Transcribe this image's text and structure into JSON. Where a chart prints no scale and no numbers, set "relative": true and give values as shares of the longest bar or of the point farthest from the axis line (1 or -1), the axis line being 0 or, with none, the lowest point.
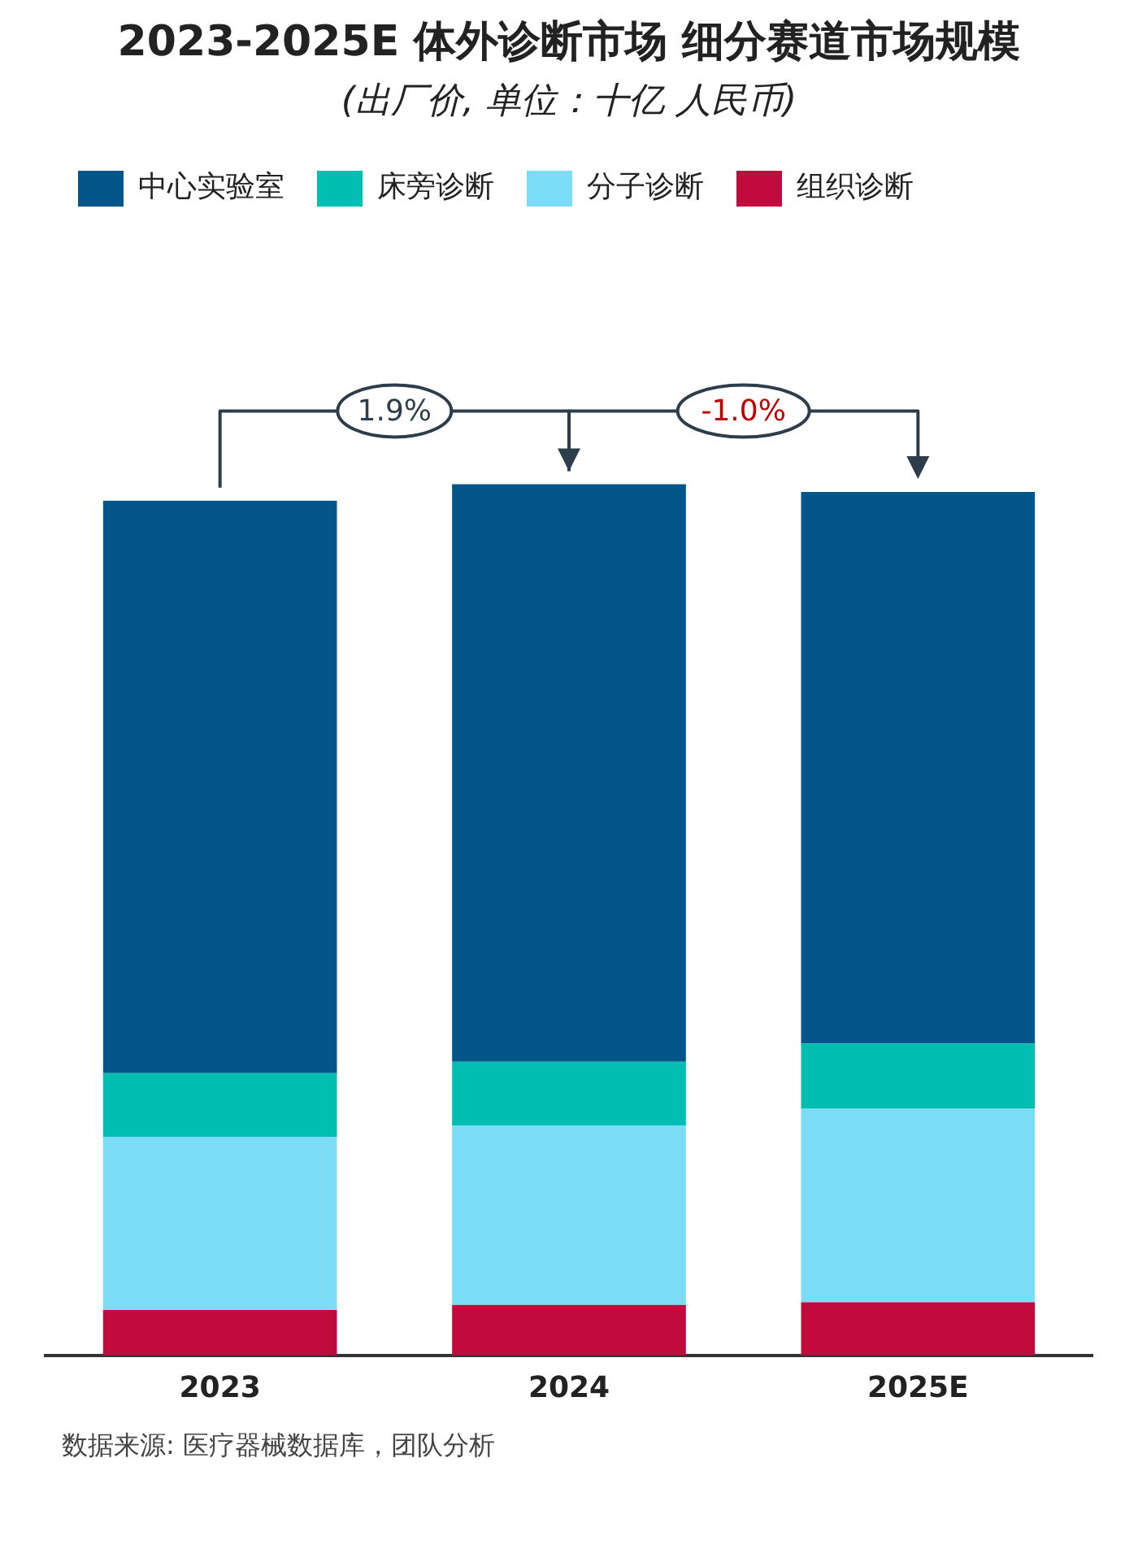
{
  "chart_data": {
    "type": "bar",
    "title": "2023-2025E 体外诊断市场 细分赛道市场规模",
    "subtitle": "(出厂价, 单位：十亿 人民币)",
    "categories": [
      "2023",
      "2024",
      "2025E"
    ],
    "stacked": true,
    "relative": true,
    "legend": "top",
    "grid": false,
    "series": [
      {
        "name": "组织诊断",
        "color": "#c10b3c",
        "values": [
          0.052,
          0.058,
          0.061
        ]
      },
      {
        "name": "分子诊断",
        "color": "#7ddcf5",
        "values": [
          0.199,
          0.206,
          0.222
        ]
      },
      {
        "name": "床旁诊断",
        "color": "#00bfb2",
        "values": [
          0.073,
          0.073,
          0.075
        ]
      },
      {
        "name": "中心实验室",
        "color": "#03558a",
        "values": [
          0.657,
          0.663,
          0.633
        ]
      }
    ],
    "annotations": [
      "1.9%",
      "-1.0%",
      "数据来源: 医疗器械数据库，团队分析"
    ]
  }
}
